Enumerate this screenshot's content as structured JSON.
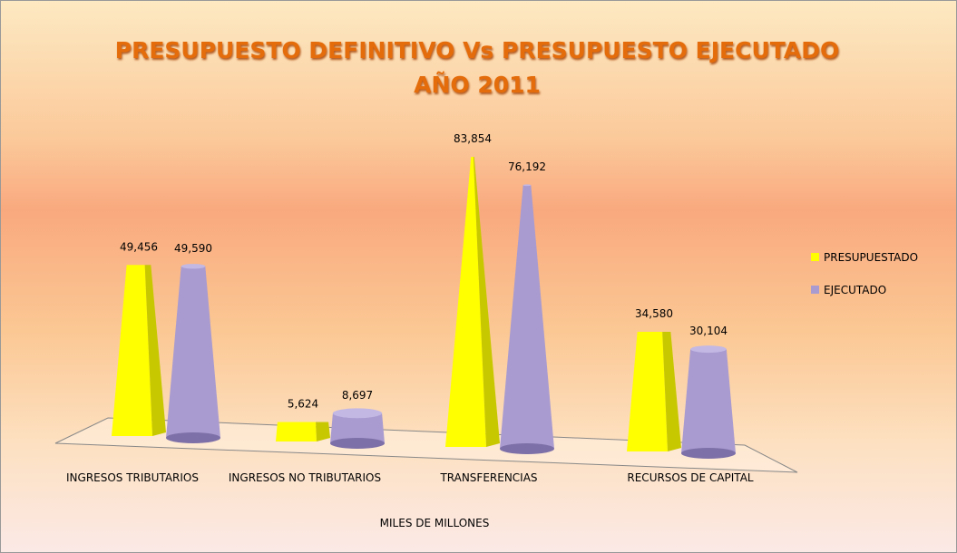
{
  "chart_data": {
    "type": "bar",
    "title": "PRESUPUESTO DEFINITIVO Vs PRESUPUESTO EJECUTADO AÑO 2011",
    "x_label": "MILES DE MILLONES",
    "categories": [
      "INGRESOS TRIBUTARIOS",
      "INGRESOS NO TRIBUTARIOS",
      "TRANSFERENCIAS",
      "RECURSOS DE CAPITAL"
    ],
    "series": [
      {
        "name": "PRESUPUESTADO",
        "color": "#ffff00",
        "values": [
          49456,
          5624,
          83854,
          34580
        ],
        "value_labels": [
          "49,456",
          "5,624",
          "83,854",
          "34,580"
        ]
      },
      {
        "name": "EJECUTADO",
        "color": "#a99bd0",
        "values": [
          49590,
          8697,
          76192,
          30104
        ],
        "value_labels": [
          "49,590",
          "8,697",
          "76,192",
          "30,104"
        ]
      }
    ],
    "legend": "right"
  }
}
